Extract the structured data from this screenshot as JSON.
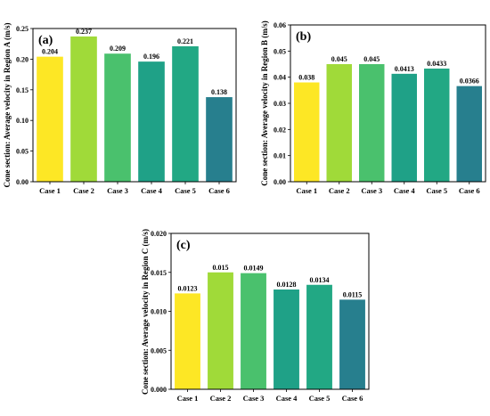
{
  "chart_data": [
    {
      "type": "bar",
      "panel_label": "(a)",
      "categories": [
        "Case 1",
        "Case 2",
        "Case 3",
        "Case 4",
        "Case 5",
        "Case 6"
      ],
      "values": [
        0.204,
        0.237,
        0.209,
        0.196,
        0.221,
        0.138
      ],
      "value_labels": [
        "0.204",
        "0.237",
        "0.209",
        "0.196",
        "0.221",
        "0.138"
      ],
      "ylabel": "Cone section: Average velocity  in Region A (m/s)",
      "ylim": [
        0.0,
        0.25
      ],
      "yticks": [
        "0.00",
        "0.05",
        "0.10",
        "0.15",
        "0.20",
        "0.25"
      ],
      "colors": [
        "#fde725",
        "#a0da39",
        "#4ac16d",
        "#1fa187",
        "#22a884",
        "#277f8e"
      ]
    },
    {
      "type": "bar",
      "panel_label": "(b)",
      "categories": [
        "Case 1",
        "Case 2",
        "Case 3",
        "Case 4",
        "Case 5",
        "Case 6"
      ],
      "values": [
        0.038,
        0.045,
        0.045,
        0.0413,
        0.0433,
        0.0366
      ],
      "value_labels": [
        "0.038",
        "0.045",
        "0.045",
        "0.0413",
        "0.0433",
        "0.0366"
      ],
      "ylabel": "Cone section: Average velocity  in Region B (m/s)",
      "ylim": [
        0.0,
        0.06
      ],
      "yticks": [
        "0.00",
        "0.01",
        "0.02",
        "0.03",
        "0.04",
        "0.05",
        "0.06"
      ],
      "colors": [
        "#fde725",
        "#a0da39",
        "#4ac16d",
        "#1fa187",
        "#22a884",
        "#277f8e"
      ]
    },
    {
      "type": "bar",
      "panel_label": "(c)",
      "categories": [
        "Case 1",
        "Case 2",
        "Case 3",
        "Case 4",
        "Case 5",
        "Case 6"
      ],
      "values": [
        0.0123,
        0.015,
        0.0149,
        0.0128,
        0.0134,
        0.0115
      ],
      "value_labels": [
        "0.0123",
        "0.015",
        "0.0149",
        "0.0128",
        "0.0134",
        "0.0115"
      ],
      "ylabel": "Cone section: Average velocity  in Region C (m/s)",
      "ylim": [
        0.0,
        0.02
      ],
      "yticks": [
        "0.000",
        "0.005",
        "0.010",
        "0.015",
        "0.020"
      ],
      "colors": [
        "#fde725",
        "#a0da39",
        "#4ac16d",
        "#1fa187",
        "#22a884",
        "#277f8e"
      ]
    }
  ]
}
